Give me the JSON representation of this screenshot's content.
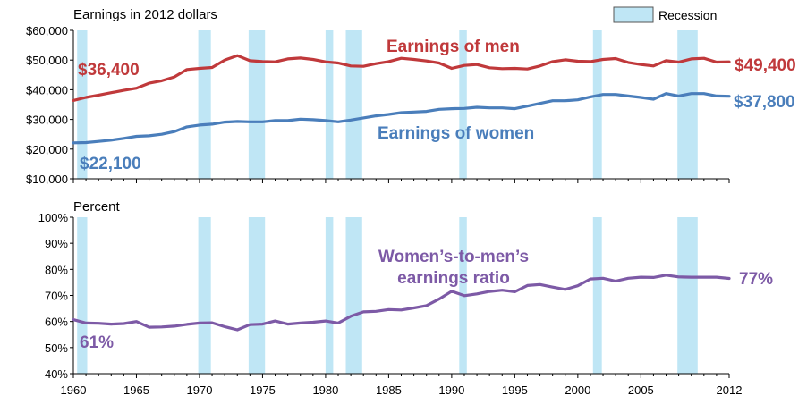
{
  "chart_data": {
    "type": "line",
    "recession_label": "Recession",
    "recession_color": "#bfe6f5",
    "recessions": [
      [
        1960.3,
        1961.1
      ],
      [
        1969.9,
        1970.9
      ],
      [
        1973.9,
        1975.2
      ],
      [
        1980.0,
        1980.6
      ],
      [
        1981.6,
        1982.9
      ],
      [
        1990.6,
        1991.2
      ],
      [
        2001.2,
        2001.9
      ],
      [
        2007.9,
        2009.5
      ]
    ],
    "x_ticks": [
      1960,
      1965,
      1970,
      1975,
      1980,
      1985,
      1990,
      1995,
      2000,
      2005,
      2012
    ],
    "top": {
      "title": "Earnings in 2012 dollars",
      "ylim": [
        10000,
        60000
      ],
      "y_ticks": [
        "$10,000",
        "$20,000",
        "$30,000",
        "$40,000",
        "$50,000",
        "$60,000"
      ],
      "y_tick_values": [
        10000,
        20000,
        30000,
        40000,
        50000,
        60000
      ],
      "series": [
        {
          "name": "Earnings of men",
          "color": "#c0393b",
          "start_label": "$36,400",
          "end_label": "$49,400",
          "x": [
            1960,
            1961,
            1962,
            1963,
            1964,
            1965,
            1966,
            1967,
            1968,
            1969,
            1970,
            1971,
            1972,
            1973,
            1974,
            1975,
            1976,
            1977,
            1978,
            1979,
            1980,
            1981,
            1982,
            1983,
            1984,
            1985,
            1986,
            1987,
            1988,
            1989,
            1990,
            1991,
            1992,
            1993,
            1994,
            1995,
            1996,
            1997,
            1998,
            1999,
            2000,
            2001,
            2002,
            2003,
            2004,
            2005,
            2006,
            2007,
            2008,
            2009,
            2010,
            2011,
            2012
          ],
          "values": [
            36400,
            37400,
            38200,
            39000,
            39800,
            40500,
            42200,
            43000,
            44300,
            46800,
            47200,
            47500,
            50000,
            51500,
            49800,
            49500,
            49400,
            50400,
            50700,
            50200,
            49400,
            49000,
            48000,
            47900,
            48800,
            49500,
            50600,
            50200,
            49700,
            49000,
            47200,
            48200,
            48500,
            47400,
            47100,
            47200,
            47000,
            48000,
            49500,
            50100,
            49600,
            49500,
            50200,
            50500,
            49200,
            48500,
            48000,
            49800,
            49300,
            50400,
            50600,
            49300,
            49400
          ]
        },
        {
          "name": "Earnings of women",
          "color": "#4a7ebb",
          "start_label": "$22,100",
          "end_label": "$37,800",
          "x": [
            1960,
            1961,
            1962,
            1963,
            1964,
            1965,
            1966,
            1967,
            1968,
            1969,
            1970,
            1971,
            1972,
            1973,
            1974,
            1975,
            1976,
            1977,
            1978,
            1979,
            1980,
            1981,
            1982,
            1983,
            1984,
            1985,
            1986,
            1987,
            1988,
            1989,
            1990,
            1991,
            1992,
            1993,
            1994,
            1995,
            1996,
            1997,
            1998,
            1999,
            2000,
            2001,
            2002,
            2003,
            2004,
            2005,
            2006,
            2007,
            2008,
            2009,
            2010,
            2011,
            2012
          ],
          "values": [
            22100,
            22200,
            22600,
            23000,
            23600,
            24300,
            24500,
            25000,
            25900,
            27500,
            28100,
            28400,
            29100,
            29300,
            29200,
            29200,
            29600,
            29600,
            30100,
            29900,
            29600,
            29200,
            29800,
            30500,
            31200,
            31700,
            32300,
            32500,
            32700,
            33400,
            33600,
            33700,
            34100,
            33900,
            33900,
            33600,
            34500,
            35400,
            36300,
            36300,
            36600,
            37600,
            38400,
            38400,
            37900,
            37400,
            36800,
            38700,
            37900,
            38700,
            38700,
            37900,
            37800
          ]
        }
      ]
    },
    "bottom": {
      "title": "Percent",
      "ylim": [
        40,
        100
      ],
      "y_ticks": [
        "40%",
        "50%",
        "60%",
        "70%",
        "80%",
        "90%",
        "100%"
      ],
      "y_tick_values": [
        40,
        50,
        60,
        70,
        80,
        90,
        100
      ],
      "series": [
        {
          "name": "Women's-to-men's earnings ratio",
          "name_lines": [
            "Women’s-to-men’s",
            "earnings ratio"
          ],
          "color": "#7d5aa6",
          "start_label": "61%",
          "end_label": "77%",
          "x": [
            1960,
            1961,
            1962,
            1963,
            1964,
            1965,
            1966,
            1967,
            1968,
            1969,
            1970,
            1971,
            1972,
            1973,
            1974,
            1975,
            1976,
            1977,
            1978,
            1979,
            1980,
            1981,
            1982,
            1983,
            1984,
            1985,
            1986,
            1987,
            1988,
            1989,
            1990,
            1991,
            1992,
            1993,
            1994,
            1995,
            1996,
            1997,
            1998,
            1999,
            2000,
            2001,
            2002,
            2003,
            2004,
            2005,
            2006,
            2007,
            2008,
            2009,
            2010,
            2011,
            2012
          ],
          "values": [
            60.7,
            59.4,
            59.3,
            59.0,
            59.2,
            60.0,
            57.8,
            57.9,
            58.2,
            58.9,
            59.4,
            59.5,
            58.0,
            56.8,
            58.8,
            59.0,
            60.2,
            59.0,
            59.4,
            59.7,
            60.2,
            59.4,
            62.0,
            63.7,
            63.9,
            64.6,
            64.4,
            65.2,
            66.1,
            68.6,
            71.6,
            69.9,
            70.6,
            71.5,
            72.0,
            71.4,
            73.8,
            74.2,
            73.2,
            72.3,
            73.7,
            76.3,
            76.6,
            75.5,
            76.6,
            77.0,
            76.9,
            77.8,
            77.1,
            77.0,
            77.0,
            77.0,
            76.5
          ]
        }
      ]
    }
  }
}
